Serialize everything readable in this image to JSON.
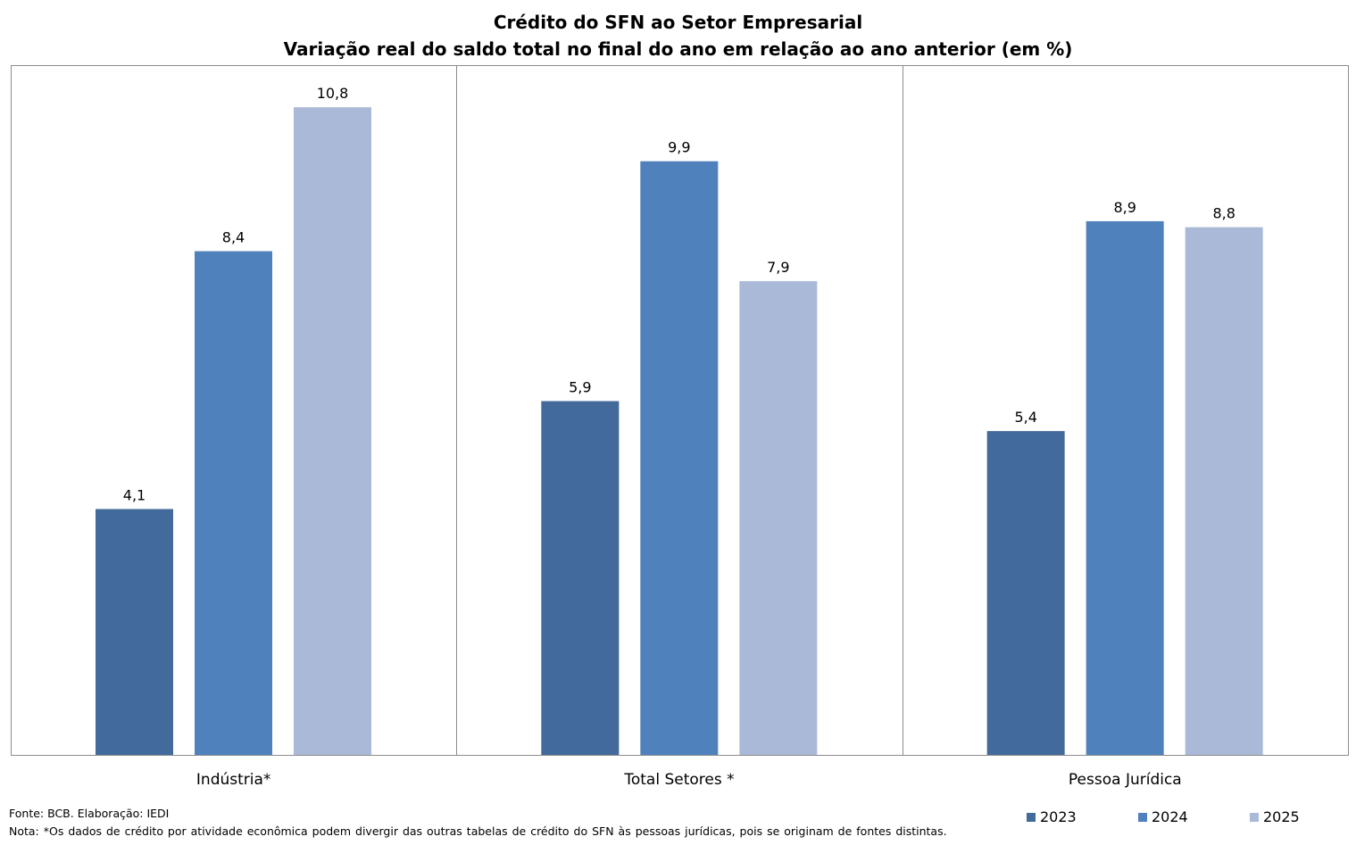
{
  "chart_data": {
    "type": "bar",
    "title": "Crédito do SFN ao Setor Empresarial",
    "subtitle": "Variação real do saldo total no final do ano em relação ao ano anterior (em %)",
    "categories": [
      "Indústria*",
      "Total Setores *",
      "Pessoa Jurídica"
    ],
    "series": [
      {
        "name": "2023",
        "color": "#426A9A",
        "values": [
          4.1,
          5.9,
          5.4
        ],
        "labels": [
          "4,1",
          "5,9",
          "5,4"
        ]
      },
      {
        "name": "2024",
        "color": "#4F81BD",
        "values": [
          8.4,
          9.9,
          8.9
        ],
        "labels": [
          "8,4",
          "9,9",
          "8,9"
        ]
      },
      {
        "name": "2025",
        "color": "#AAB9D7",
        "values": [
          10.8,
          7.9,
          8.8
        ],
        "labels": [
          "10,8",
          "7,9",
          "8,8"
        ]
      }
    ],
    "ylim": [
      0,
      13
    ],
    "grid": false,
    "legend_position": "bottom-right"
  },
  "footer": {
    "source": "Fonte: BCB. Elaboração: IEDI",
    "note": "Nota:  *Os dados de crédito por atividade econômica podem divergir das outras tabelas de crédito do SFN às pessoas jurídicas, pois se originam de fontes distintas."
  }
}
